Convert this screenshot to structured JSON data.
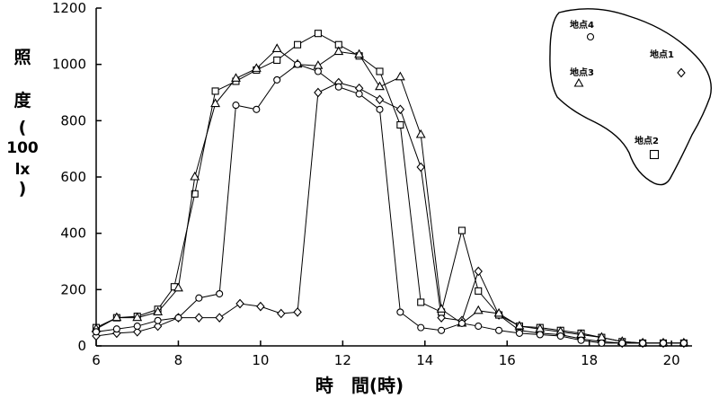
{
  "chart_data": {
    "type": "line",
    "xlabel": "時　間(時)",
    "ylabel_chars": [
      "照",
      "度",
      "(",
      "100",
      "lx",
      ")"
    ],
    "xlim": [
      6,
      20.5
    ],
    "ylim": [
      0,
      1200
    ],
    "xticks": [
      6,
      8,
      10,
      12,
      14,
      16,
      18,
      20
    ],
    "yticks": [
      0,
      200,
      400,
      600,
      800,
      1000,
      1200
    ],
    "grid": false,
    "series": [
      {
        "name": "地点1",
        "marker": "diamond",
        "x": [
          6.0,
          6.5,
          7.0,
          7.5,
          8.0,
          8.5,
          9.0,
          9.5,
          10.0,
          10.5,
          10.9,
          11.4,
          11.9,
          12.4,
          12.9,
          13.4,
          13.9,
          14.4,
          14.9,
          15.3,
          15.8,
          16.3,
          16.8,
          17.3,
          17.8,
          18.3,
          18.8,
          19.3,
          19.8,
          20.3
        ],
        "values": [
          35,
          45,
          50,
          70,
          100,
          100,
          100,
          150,
          140,
          115,
          120,
          900,
          935,
          915,
          875,
          840,
          635,
          100,
          90,
          265,
          110,
          55,
          45,
          40,
          25,
          15,
          10,
          10,
          10,
          10
        ]
      },
      {
        "name": "地点2",
        "marker": "square",
        "x": [
          6.0,
          6.5,
          7.0,
          7.5,
          7.9,
          8.4,
          8.9,
          9.4,
          9.9,
          10.4,
          10.9,
          11.4,
          11.9,
          12.4,
          12.9,
          13.4,
          13.9,
          14.4,
          14.9,
          15.3,
          15.8,
          16.3,
          16.8,
          17.3,
          17.8,
          18.3,
          18.8,
          19.3,
          19.8,
          20.3
        ],
        "values": [
          65,
          100,
          105,
          130,
          210,
          540,
          905,
          940,
          980,
          1015,
          1070,
          1110,
          1070,
          1030,
          975,
          785,
          155,
          120,
          410,
          195,
          110,
          70,
          65,
          55,
          45,
          30,
          15,
          10,
          10,
          10
        ]
      },
      {
        "name": "地点3",
        "marker": "triangle",
        "x": [
          6.0,
          6.5,
          7.0,
          7.5,
          8.0,
          8.4,
          8.9,
          9.4,
          9.9,
          10.4,
          10.9,
          11.4,
          11.9,
          12.4,
          12.9,
          13.4,
          13.9,
          14.4,
          14.9,
          15.3,
          15.8,
          16.3,
          16.8,
          17.3,
          17.8,
          18.3,
          18.8,
          19.3,
          19.8,
          20.3
        ],
        "values": [
          60,
          100,
          100,
          120,
          205,
          600,
          860,
          950,
          985,
          1055,
          1000,
          995,
          1045,
          1035,
          920,
          955,
          750,
          130,
          80,
          125,
          115,
          70,
          60,
          50,
          40,
          30,
          15,
          10,
          10,
          10
        ]
      },
      {
        "name": "地点4",
        "marker": "circle",
        "x": [
          6.0,
          6.5,
          7.0,
          7.5,
          8.0,
          8.5,
          9.0,
          9.4,
          9.9,
          10.4,
          10.9,
          11.4,
          11.9,
          12.4,
          12.9,
          13.4,
          13.9,
          14.4,
          14.9,
          15.3,
          15.8,
          16.3,
          16.8,
          17.3,
          17.8,
          18.3,
          18.8,
          19.3,
          19.8,
          20.3
        ],
        "values": [
          50,
          60,
          70,
          90,
          100,
          170,
          185,
          855,
          840,
          945,
          1000,
          975,
          920,
          895,
          840,
          120,
          65,
          55,
          80,
          70,
          55,
          45,
          40,
          35,
          20,
          10,
          10,
          10,
          10,
          10
        ]
      }
    ],
    "inset": {
      "sites": [
        {
          "label": "地点4",
          "marker": "circle"
        },
        {
          "label": "地点1",
          "marker": "diamond"
        },
        {
          "label": "地点3",
          "marker": "triangle"
        },
        {
          "label": "地点2",
          "marker": "square"
        }
      ]
    }
  }
}
